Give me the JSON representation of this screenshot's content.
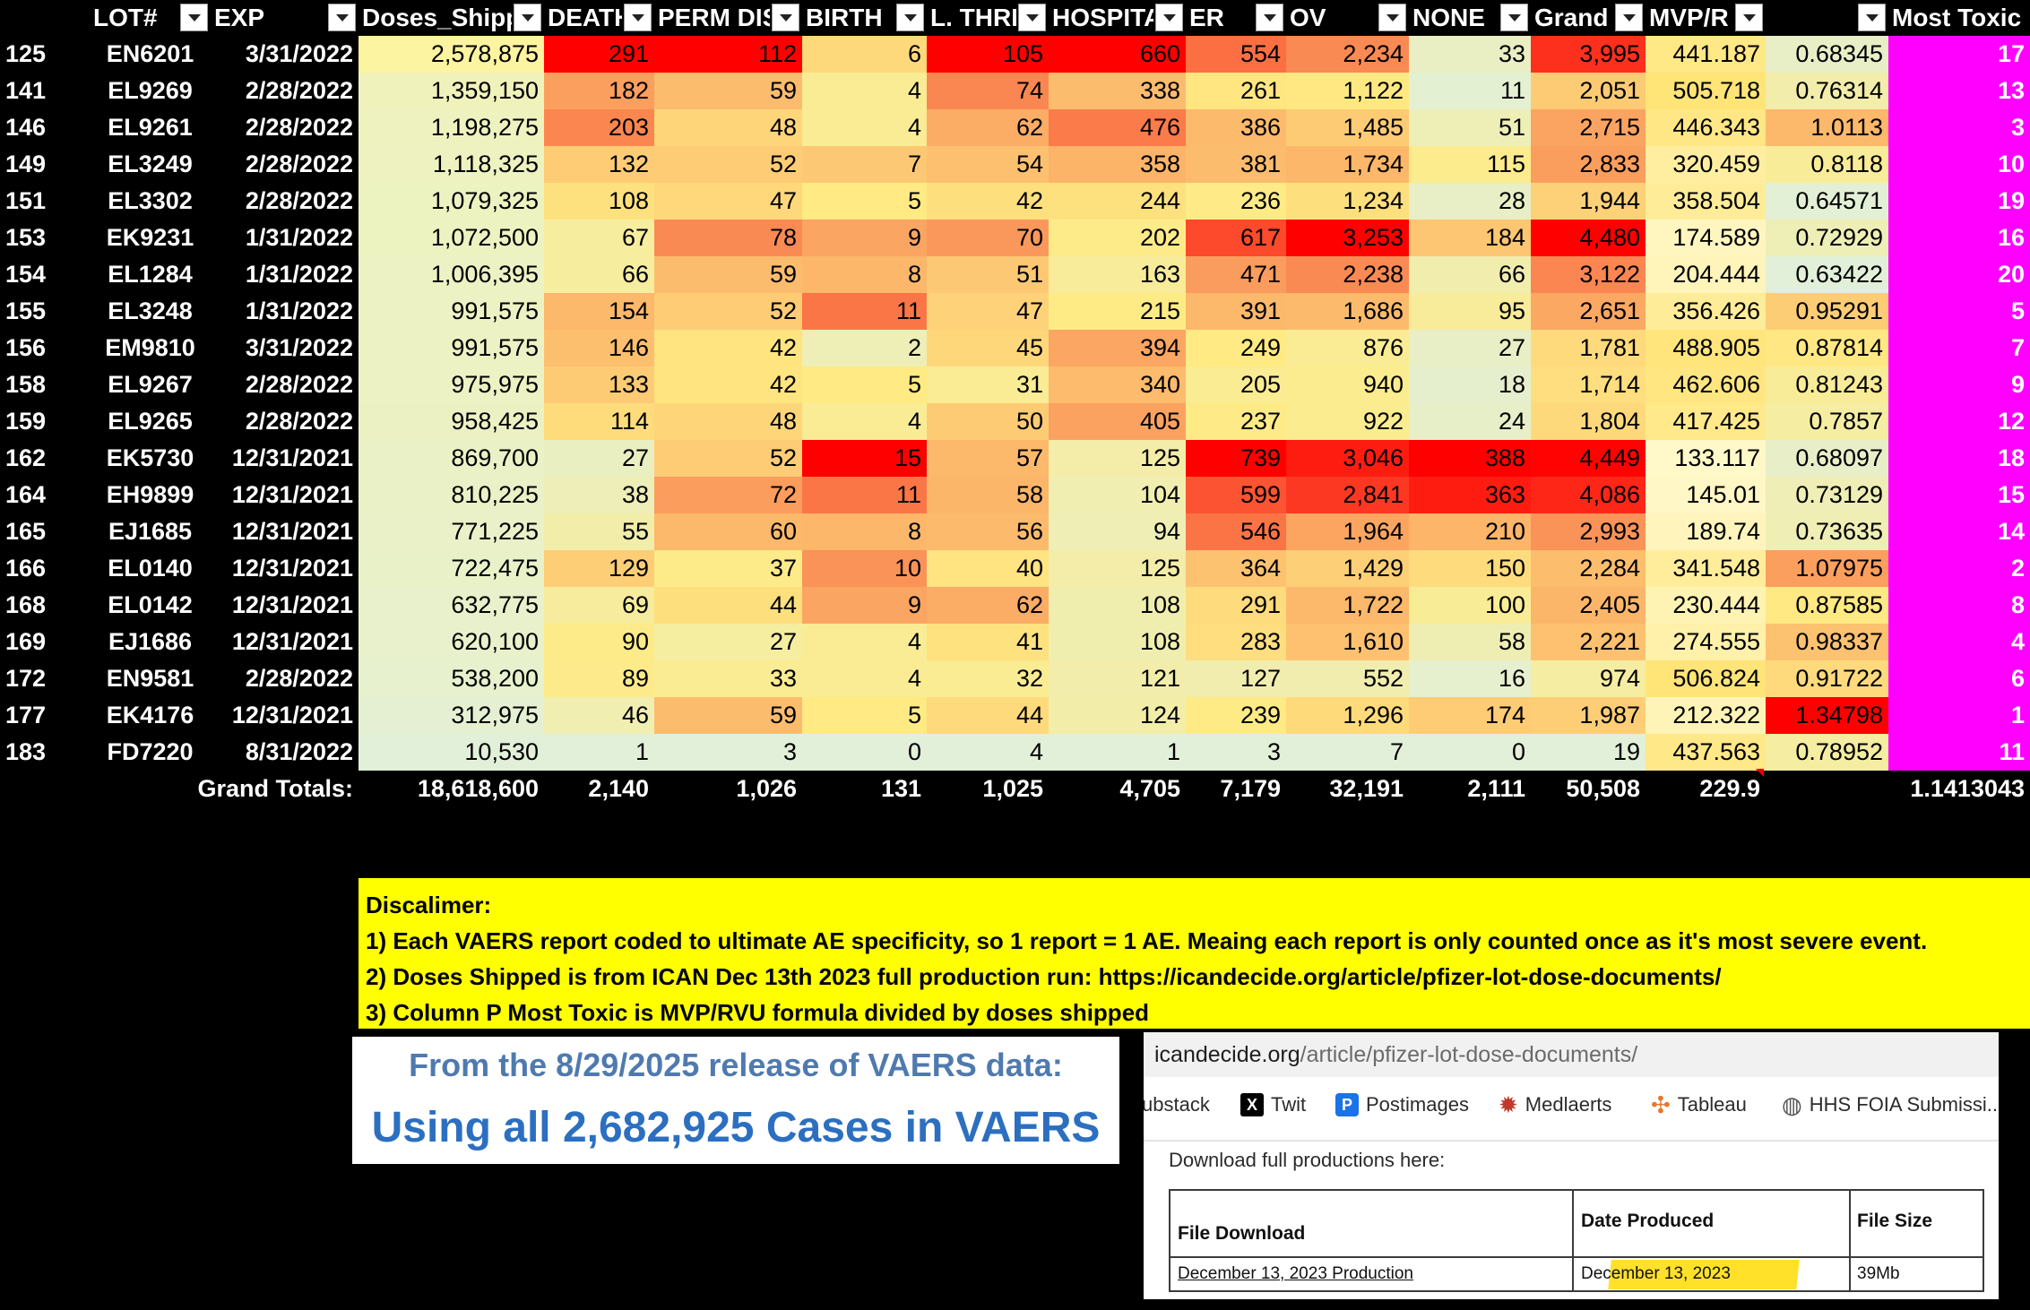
{
  "sheet": {
    "headers": [
      "",
      "LOT#",
      "EXP",
      "Doses_Shipped",
      "DEATH",
      "PERM DIS",
      "BIRTH",
      "L. THRE",
      "HOSPITA",
      "ER",
      "OV",
      "NONE",
      "Grand",
      "MVP/R",
      "",
      "Most Toxic"
    ],
    "rows": [
      {
        "row_num": "125",
        "lot": "EN6201",
        "exp": "3/31/2022",
        "doses": "2,578,875",
        "death": "291",
        "perm": "112",
        "birth": "6",
        "lthreat": "105",
        "hosp": "660",
        "er": "554",
        "ov": "2,234",
        "none": "33",
        "grand": "3,995",
        "mvp": "441.187",
        "ratio": "0.68345",
        "rank": "17"
      },
      {
        "row_num": "141",
        "lot": "EL9269",
        "exp": "2/28/2022",
        "doses": "1,359,150",
        "death": "182",
        "perm": "59",
        "birth": "4",
        "lthreat": "74",
        "hosp": "338",
        "er": "261",
        "ov": "1,122",
        "none": "11",
        "grand": "2,051",
        "mvp": "505.718",
        "ratio": "0.76314",
        "rank": "13"
      },
      {
        "row_num": "146",
        "lot": "EL9261",
        "exp": "2/28/2022",
        "doses": "1,198,275",
        "death": "203",
        "perm": "48",
        "birth": "4",
        "lthreat": "62",
        "hosp": "476",
        "er": "386",
        "ov": "1,485",
        "none": "51",
        "grand": "2,715",
        "mvp": "446.343",
        "ratio": "1.0113",
        "rank": "3"
      },
      {
        "row_num": "149",
        "lot": "EL3249",
        "exp": "2/28/2022",
        "doses": "1,118,325",
        "death": "132",
        "perm": "52",
        "birth": "7",
        "lthreat": "54",
        "hosp": "358",
        "er": "381",
        "ov": "1,734",
        "none": "115",
        "grand": "2,833",
        "mvp": "320.459",
        "ratio": "0.8118",
        "rank": "10"
      },
      {
        "row_num": "151",
        "lot": "EL3302",
        "exp": "2/28/2022",
        "doses": "1,079,325",
        "death": "108",
        "perm": "47",
        "birth": "5",
        "lthreat": "42",
        "hosp": "244",
        "er": "236",
        "ov": "1,234",
        "none": "28",
        "grand": "1,944",
        "mvp": "358.504",
        "ratio": "0.64571",
        "rank": "19"
      },
      {
        "row_num": "153",
        "lot": "EK9231",
        "exp": "1/31/2022",
        "doses": "1,072,500",
        "death": "67",
        "perm": "78",
        "birth": "9",
        "lthreat": "70",
        "hosp": "202",
        "er": "617",
        "ov": "3,253",
        "none": "184",
        "grand": "4,480",
        "mvp": "174.589",
        "ratio": "0.72929",
        "rank": "16"
      },
      {
        "row_num": "154",
        "lot": "EL1284",
        "exp": "1/31/2022",
        "doses": "1,006,395",
        "death": "66",
        "perm": "59",
        "birth": "8",
        "lthreat": "51",
        "hosp": "163",
        "er": "471",
        "ov": "2,238",
        "none": "66",
        "grand": "3,122",
        "mvp": "204.444",
        "ratio": "0.63422",
        "rank": "20"
      },
      {
        "row_num": "155",
        "lot": "EL3248",
        "exp": "1/31/2022",
        "doses": "991,575",
        "death": "154",
        "perm": "52",
        "birth": "11",
        "lthreat": "47",
        "hosp": "215",
        "er": "391",
        "ov": "1,686",
        "none": "95",
        "grand": "2,651",
        "mvp": "356.426",
        "ratio": "0.95291",
        "rank": "5"
      },
      {
        "row_num": "156",
        "lot": "EM9810",
        "exp": "3/31/2022",
        "doses": "991,575",
        "death": "146",
        "perm": "42",
        "birth": "2",
        "lthreat": "45",
        "hosp": "394",
        "er": "249",
        "ov": "876",
        "none": "27",
        "grand": "1,781",
        "mvp": "488.905",
        "ratio": "0.87814",
        "rank": "7"
      },
      {
        "row_num": "158",
        "lot": "EL9267",
        "exp": "2/28/2022",
        "doses": "975,975",
        "death": "133",
        "perm": "42",
        "birth": "5",
        "lthreat": "31",
        "hosp": "340",
        "er": "205",
        "ov": "940",
        "none": "18",
        "grand": "1,714",
        "mvp": "462.606",
        "ratio": "0.81243",
        "rank": "9"
      },
      {
        "row_num": "159",
        "lot": "EL9265",
        "exp": "2/28/2022",
        "doses": "958,425",
        "death": "114",
        "perm": "48",
        "birth": "4",
        "lthreat": "50",
        "hosp": "405",
        "er": "237",
        "ov": "922",
        "none": "24",
        "grand": "1,804",
        "mvp": "417.425",
        "ratio": "0.7857",
        "rank": "12"
      },
      {
        "row_num": "162",
        "lot": "EK5730",
        "exp": "12/31/2021",
        "doses": "869,700",
        "death": "27",
        "perm": "52",
        "birth": "15",
        "lthreat": "57",
        "hosp": "125",
        "er": "739",
        "ov": "3,046",
        "none": "388",
        "grand": "4,449",
        "mvp": "133.117",
        "ratio": "0.68097",
        "rank": "18"
      },
      {
        "row_num": "164",
        "lot": "EH9899",
        "exp": "12/31/2021",
        "doses": "810,225",
        "death": "38",
        "perm": "72",
        "birth": "11",
        "lthreat": "58",
        "hosp": "104",
        "er": "599",
        "ov": "2,841",
        "none": "363",
        "grand": "4,086",
        "mvp": "145.01",
        "ratio": "0.73129",
        "rank": "15"
      },
      {
        "row_num": "165",
        "lot": "EJ1685",
        "exp": "12/31/2021",
        "doses": "771,225",
        "death": "55",
        "perm": "60",
        "birth": "8",
        "lthreat": "56",
        "hosp": "94",
        "er": "546",
        "ov": "1,964",
        "none": "210",
        "grand": "2,993",
        "mvp": "189.74",
        "ratio": "0.73635",
        "rank": "14"
      },
      {
        "row_num": "166",
        "lot": "EL0140",
        "exp": "12/31/2021",
        "doses": "722,475",
        "death": "129",
        "perm": "37",
        "birth": "10",
        "lthreat": "40",
        "hosp": "125",
        "er": "364",
        "ov": "1,429",
        "none": "150",
        "grand": "2,284",
        "mvp": "341.548",
        "ratio": "1.07975",
        "rank": "2"
      },
      {
        "row_num": "168",
        "lot": "EL0142",
        "exp": "12/31/2021",
        "doses": "632,775",
        "death": "69",
        "perm": "44",
        "birth": "9",
        "lthreat": "62",
        "hosp": "108",
        "er": "291",
        "ov": "1,722",
        "none": "100",
        "grand": "2,405",
        "mvp": "230.444",
        "ratio": "0.87585",
        "rank": "8"
      },
      {
        "row_num": "169",
        "lot": "EJ1686",
        "exp": "12/31/2021",
        "doses": "620,100",
        "death": "90",
        "perm": "27",
        "birth": "4",
        "lthreat": "41",
        "hosp": "108",
        "er": "283",
        "ov": "1,610",
        "none": "58",
        "grand": "2,221",
        "mvp": "274.555",
        "ratio": "0.98337",
        "rank": "4"
      },
      {
        "row_num": "172",
        "lot": "EN9581",
        "exp": "2/28/2022",
        "doses": "538,200",
        "death": "89",
        "perm": "33",
        "birth": "4",
        "lthreat": "32",
        "hosp": "121",
        "er": "127",
        "ov": "552",
        "none": "16",
        "grand": "974",
        "mvp": "506.824",
        "ratio": "0.91722",
        "rank": "6"
      },
      {
        "row_num": "177",
        "lot": "EK4176",
        "exp": "12/31/2021",
        "doses": "312,975",
        "death": "46",
        "perm": "59",
        "birth": "5",
        "lthreat": "44",
        "hosp": "124",
        "er": "239",
        "ov": "1,296",
        "none": "174",
        "grand": "1,987",
        "mvp": "212.322",
        "ratio": "1.34798",
        "rank": "1"
      },
      {
        "row_num": "183",
        "lot": "FD7220",
        "exp": "8/31/2022",
        "doses": "10,530",
        "death": "1",
        "perm": "3",
        "birth": "0",
        "lthreat": "4",
        "hosp": "1",
        "er": "3",
        "ov": "7",
        "none": "0",
        "grand": "19",
        "mvp": "437.563",
        "ratio": "0.78952",
        "rank": "11"
      }
    ],
    "totals": {
      "label": "Grand Totals:",
      "doses": "18,618,600",
      "death": "2,140",
      "perm": "1,026",
      "birth": "131",
      "lthreat": "1,025",
      "hosp": "4,705",
      "er": "7,179",
      "ov": "32,191",
      "none": "2,111",
      "grand": "50,508",
      "mvp": "229.9",
      "rank": "1.1413043"
    }
  },
  "disclaimer": {
    "title": "Discalimer:",
    "items": [
      "1)  Each VAERS report coded to ultimate AE specificity, so 1 report = 1 AE.  Meaing each report is only counted once as it's most severe event.",
      "2)  Doses Shipped is from ICAN Dec 13th 2023 full production run: https://icandecide.org/article/pfizer-lot-dose-documents/",
      "3)  Column P Most Toxic is MVP/RVU formula divided by doses shipped"
    ]
  },
  "release": {
    "line1": "From the 8/29/2025 release of VAERS data:",
    "line2": "Using all 2,682,925 Cases in VAERS"
  },
  "browser": {
    "url_domain": "icandecide.org",
    "url_path": "/article/pfizer-lot-dose-documents/",
    "bookmarks": [
      "ubstack",
      "Twit",
      "Postimages",
      "Medlaerts",
      "Tableau",
      "HHS FOIA Submissi..."
    ],
    "download_heading": "Download full productions here:",
    "table_headers": [
      "File Download",
      "Date Produced",
      "File Size"
    ],
    "table_row": [
      "December 13, 2023 Production",
      "December 13, 2023",
      "39Mb"
    ]
  }
}
